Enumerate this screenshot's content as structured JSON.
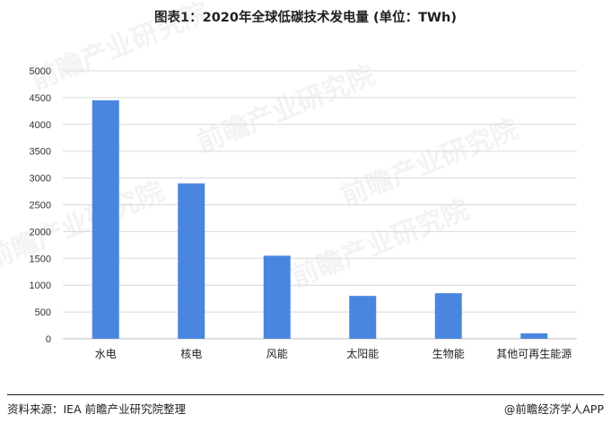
{
  "chart_data": {
    "type": "bar",
    "title": "图表1：2020年全球低碳技术发电量 (单位：TWh)",
    "categories": [
      "水电",
      "核电",
      "风能",
      "太阳能",
      "生物能",
      "其他可再生能源"
    ],
    "values": [
      4450,
      2900,
      1550,
      800,
      850,
      100
    ],
    "ylim": [
      0,
      5000
    ],
    "yticks": [
      0,
      500,
      1000,
      1500,
      2000,
      2500,
      3000,
      3500,
      4000,
      4500,
      5000
    ],
    "xlabel": "",
    "ylabel": "",
    "grid": true,
    "bar_color": "#4a86e0"
  },
  "footer": {
    "source": "资料来源：IEA 前瞻产业研究院整理",
    "brand": "@前瞻经济学人APP"
  },
  "watermark": {
    "text": "前瞻产业研究院"
  }
}
